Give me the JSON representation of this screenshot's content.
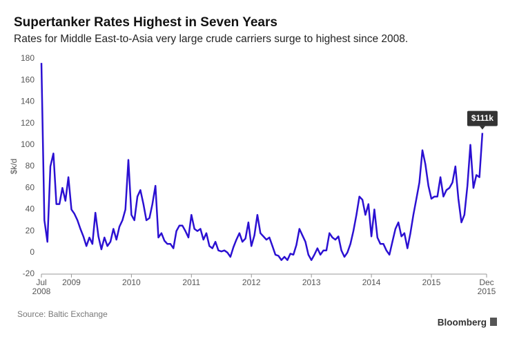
{
  "chart_data": {
    "type": "line",
    "title": "Supertanker Rates Highest in Seven Years",
    "subtitle": "Rates for Middle East-to-Asia very large crude carriers surge to highest since 2008.",
    "y_label": "$k/d",
    "source": "Source: Baltic Exchange",
    "brand": "Bloomberg",
    "annotation": "$111k",
    "color": "#2b10d2",
    "grid": false,
    "xlim": [
      2008.5,
      2015.92
    ],
    "ylim": [
      -20,
      180
    ],
    "yticks": [
      -20,
      0,
      20,
      40,
      60,
      80,
      100,
      120,
      140,
      160,
      180
    ],
    "xticks": [
      {
        "value": 2008.5,
        "label": "Jul 2008"
      },
      2009,
      2010,
      2011,
      2012,
      2013,
      2014,
      2015,
      {
        "value": 2015.92,
        "label": "Dec 2015"
      }
    ],
    "x": [
      2008.5,
      2008.55,
      2008.6,
      2008.65,
      2008.7,
      2008.75,
      2008.8,
      2008.85,
      2008.9,
      2008.95,
      2009,
      2009.05,
      2009.1,
      2009.15,
      2009.2,
      2009.25,
      2009.3,
      2009.35,
      2009.4,
      2009.45,
      2009.5,
      2009.55,
      2009.6,
      2009.65,
      2009.7,
      2009.75,
      2009.8,
      2009.85,
      2009.9,
      2009.95,
      2010,
      2010.05,
      2010.1,
      2010.15,
      2010.2,
      2010.25,
      2010.3,
      2010.35,
      2010.4,
      2010.45,
      2010.5,
      2010.55,
      2010.6,
      2010.65,
      2010.7,
      2010.75,
      2010.8,
      2010.85,
      2010.9,
      2010.95,
      2011,
      2011.05,
      2011.1,
      2011.15,
      2011.2,
      2011.25,
      2011.3,
      2011.35,
      2011.4,
      2011.45,
      2011.5,
      2011.55,
      2011.6,
      2011.65,
      2011.7,
      2011.75,
      2011.8,
      2011.85,
      2011.9,
      2011.95,
      2012,
      2012.05,
      2012.1,
      2012.15,
      2012.2,
      2012.25,
      2012.3,
      2012.35,
      2012.4,
      2012.45,
      2012.5,
      2012.55,
      2012.6,
      2012.65,
      2012.7,
      2012.75,
      2012.8,
      2012.85,
      2012.9,
      2012.95,
      2013,
      2013.05,
      2013.1,
      2013.15,
      2013.2,
      2013.25,
      2013.3,
      2013.35,
      2013.4,
      2013.45,
      2013.5,
      2013.55,
      2013.6,
      2013.65,
      2013.7,
      2013.75,
      2013.8,
      2013.85,
      2013.9,
      2013.95,
      2014,
      2014.05,
      2014.1,
      2014.15,
      2014.2,
      2014.25,
      2014.3,
      2014.35,
      2014.4,
      2014.45,
      2014.5,
      2014.55,
      2014.6,
      2014.65,
      2014.7,
      2014.75,
      2014.8,
      2014.85,
      2014.9,
      2014.95,
      2015,
      2015.05,
      2015.1,
      2015.15,
      2015.2,
      2015.25,
      2015.3,
      2015.35,
      2015.4,
      2015.45,
      2015.5,
      2015.55,
      2015.6,
      2015.65,
      2015.7,
      2015.75,
      2015.8,
      2015.85
    ],
    "values": [
      176,
      30,
      10,
      80,
      92,
      45,
      45,
      60,
      48,
      70,
      40,
      36,
      30,
      22,
      15,
      6,
      14,
      8,
      37,
      15,
      3,
      14,
      6,
      10,
      22,
      12,
      24,
      30,
      40,
      86,
      35,
      30,
      52,
      58,
      45,
      30,
      32,
      45,
      62,
      14,
      18,
      11,
      8,
      8,
      4,
      20,
      25,
      25,
      20,
      14,
      35,
      22,
      20,
      22,
      12,
      18,
      6,
      4,
      10,
      2,
      1,
      2,
      0,
      -4,
      5,
      12,
      18,
      10,
      13,
      28,
      6,
      16,
      35,
      18,
      15,
      12,
      14,
      6,
      -2,
      -3,
      -7,
      -4,
      -7,
      -1,
      -2,
      7,
      22,
      16,
      10,
      -2,
      -7,
      -2,
      4,
      -2,
      2,
      2,
      18,
      14,
      12,
      15,
      2,
      -4,
      0,
      8,
      20,
      35,
      52,
      49,
      35,
      45,
      15,
      40,
      14,
      8,
      8,
      2,
      -2,
      10,
      22,
      28,
      15,
      18,
      4,
      18,
      35,
      50,
      65,
      95,
      82,
      62,
      50,
      52,
      52,
      70,
      52,
      58,
      60,
      65,
      80,
      50,
      28,
      35,
      62,
      100,
      60,
      72,
      70,
      111
    ]
  }
}
